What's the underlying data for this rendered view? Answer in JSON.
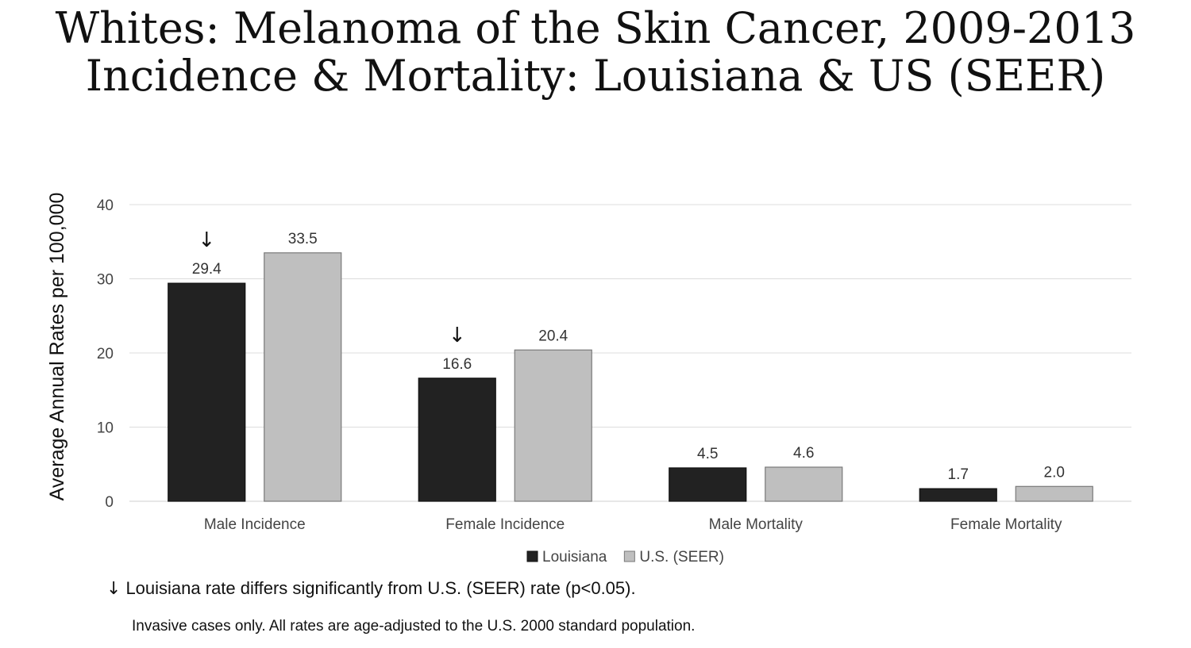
{
  "title": {
    "line1": "Whites: Melanoma of the Skin Cancer, 2009-2013",
    "line2": "Incidence & Mortality: Louisiana & US (SEER)"
  },
  "chart_data": {
    "type": "bar",
    "ylabel": "Average Annual Rates per 100,000",
    "xlabel": "",
    "ylim": [
      0,
      40
    ],
    "yticks": [
      0,
      10,
      20,
      30,
      40
    ],
    "grid": true,
    "legend_position": "bottom",
    "categories": [
      "Male Incidence",
      "Female Incidence",
      "Male Mortality",
      "Female Mortality"
    ],
    "series": [
      {
        "name": "Louisiana",
        "values": [
          29.4,
          16.6,
          4.5,
          1.7
        ],
        "labels": [
          "29.4",
          "16.6",
          "4.5",
          "1.7"
        ],
        "color": "#222222"
      },
      {
        "name": "U.S. (SEER)",
        "values": [
          33.5,
          20.4,
          4.6,
          2.0
        ],
        "labels": [
          "33.5",
          "20.4",
          "4.6",
          "2.0"
        ],
        "color": "#bfbfbf"
      }
    ],
    "significance_marker": "↓",
    "significant": [
      true,
      true,
      false,
      false
    ]
  },
  "notes": {
    "arrow_symbol": "↓",
    "significance": "Louisiana rate differs significantly from U.S. (SEER) rate (p<0.05).",
    "footnote": "Invasive cases only. All rates are age-adjusted to the U.S. 2000 standard population."
  }
}
